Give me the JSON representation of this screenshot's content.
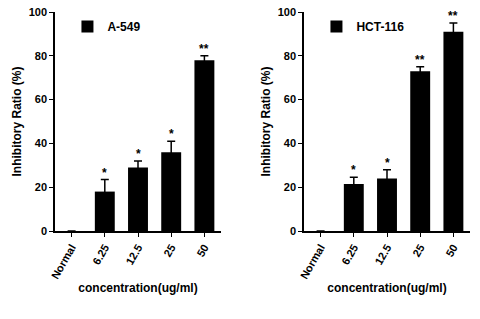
{
  "chart_data": [
    {
      "type": "bar",
      "categories": [
        "Normal",
        "6.25",
        "12.5",
        "25",
        "50"
      ],
      "series": [
        {
          "name": "A-549",
          "color": "#000000",
          "values": [
            0,
            18,
            29,
            36,
            78
          ],
          "errors": [
            0,
            5.5,
            3,
            5,
            2
          ]
        }
      ],
      "annotations": [
        {
          "category": "6.25",
          "text": "*"
        },
        {
          "category": "12.5",
          "text": "*"
        },
        {
          "category": "25",
          "text": "*"
        },
        {
          "category": "50",
          "text": "**"
        }
      ],
      "x_label": "concentration(ug/ml)",
      "y_label": "Inhibitory Ratio (%)",
      "ylim": [
        0,
        100
      ],
      "yticks": [
        0,
        20,
        40,
        60,
        80,
        100
      ],
      "grid": false,
      "legend": "top left"
    },
    {
      "type": "bar",
      "categories": [
        "Normal",
        "6.25",
        "12.5",
        "25",
        "50"
      ],
      "series": [
        {
          "name": "HCT-116",
          "color": "#000000",
          "values": [
            0,
            21.5,
            24,
            73,
            91
          ],
          "errors": [
            0,
            3,
            4,
            2,
            4
          ]
        }
      ],
      "annotations": [
        {
          "category": "6.25",
          "text": "*"
        },
        {
          "category": "12.5",
          "text": "*"
        },
        {
          "category": "25",
          "text": "**"
        },
        {
          "category": "50",
          "text": "**"
        }
      ],
      "x_label": "concentration(ug/ml)",
      "y_label": "Inhibitory Ratio (%)",
      "ylim": [
        0,
        100
      ],
      "yticks": [
        0,
        20,
        40,
        60,
        80,
        100
      ],
      "grid": false,
      "legend": "top left"
    }
  ]
}
